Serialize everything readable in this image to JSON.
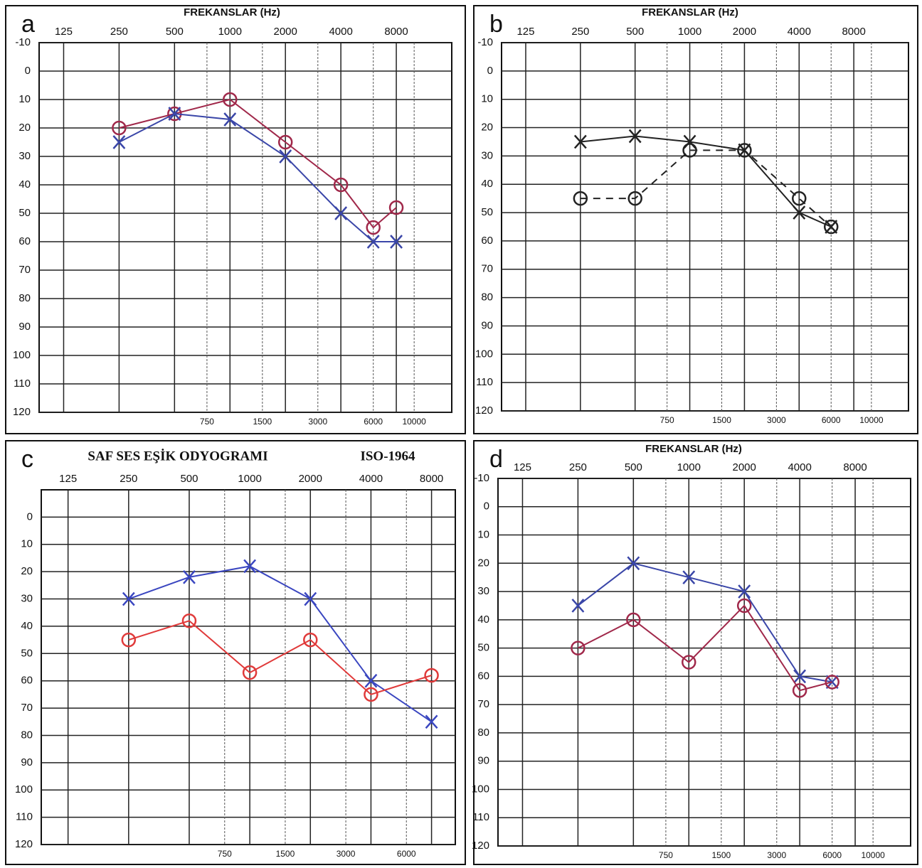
{
  "chart_data": [
    {
      "type": "line",
      "label": "a",
      "title": "FREKANSLAR (Hz)",
      "xscale": "log",
      "xlim": [
        92,
        16000
      ],
      "xticks": [
        125,
        250,
        500,
        1000,
        2000,
        4000,
        8000
      ],
      "x2ticks": [
        750,
        1500,
        3000,
        6000,
        10000
      ],
      "ylim": [
        -10,
        120
      ],
      "y_inverted": true,
      "yticks": [
        -10,
        0,
        10,
        20,
        30,
        40,
        50,
        60,
        70,
        80,
        90,
        100,
        110,
        120
      ],
      "grid": true,
      "x": [
        250,
        500,
        1000,
        2000,
        4000,
        6000,
        8000
      ],
      "series": [
        {
          "marker": "o",
          "color": "#a0284a",
          "values": [
            20,
            15,
            10,
            25,
            40,
            55,
            48
          ]
        },
        {
          "marker": "x",
          "color": "#3a46a8",
          "values": [
            25,
            15,
            17,
            30,
            50,
            60,
            60
          ]
        }
      ]
    },
    {
      "type": "line",
      "label": "b",
      "title": "FREKANSLAR (Hz)",
      "xscale": "log",
      "xlim": [
        92,
        16000
      ],
      "xticks": [
        125,
        250,
        500,
        1000,
        2000,
        4000,
        8000
      ],
      "x2ticks": [
        750,
        1500,
        3000,
        6000,
        10000
      ],
      "ylim": [
        -10,
        120
      ],
      "y_inverted": true,
      "yticks": [
        -10,
        0,
        10,
        20,
        30,
        40,
        50,
        60,
        70,
        80,
        90,
        100,
        110,
        120
      ],
      "grid": true,
      "x": [
        250,
        500,
        1000,
        2000,
        4000,
        6000
      ],
      "series": [
        {
          "marker": "o",
          "color": "#222222",
          "dashed": true,
          "values": [
            45,
            45,
            28,
            28,
            45,
            55
          ]
        },
        {
          "marker": "x",
          "color": "#222222",
          "values": [
            25,
            23,
            25,
            28,
            50,
            55
          ]
        }
      ]
    },
    {
      "type": "line",
      "label": "c",
      "title": "SAF SES EŞİK ODYOGRAMI",
      "subtitle": "ISO-1964",
      "xscale": "log",
      "xlim": [
        92,
        10500
      ],
      "xticks": [
        125,
        250,
        500,
        1000,
        2000,
        4000,
        8000
      ],
      "x2ticks": [
        750,
        1500,
        3000,
        6000
      ],
      "ylim": [
        -10,
        120
      ],
      "y_inverted": true,
      "yticks": [
        0,
        10,
        20,
        30,
        40,
        50,
        60,
        70,
        80,
        90,
        100,
        110,
        120
      ],
      "grid": true,
      "x": [
        250,
        500,
        1000,
        2000,
        4000,
        8000
      ],
      "series": [
        {
          "marker": "x",
          "color": "#3a46c0",
          "values": [
            30,
            22,
            18,
            30,
            60,
            75
          ]
        },
        {
          "marker": "o",
          "color": "#e03a3a",
          "values": [
            45,
            38,
            57,
            45,
            65,
            58
          ]
        }
      ]
    },
    {
      "type": "line",
      "label": "d",
      "title": "FREKANSLAR (Hz)",
      "xscale": "log",
      "xlim": [
        92,
        16000
      ],
      "xticks": [
        125,
        250,
        500,
        1000,
        2000,
        4000,
        8000
      ],
      "x2ticks": [
        750,
        1500,
        3000,
        6000,
        10000
      ],
      "ylim": [
        -10,
        120
      ],
      "y_inverted": true,
      "yticks": [
        -10,
        0,
        10,
        20,
        30,
        40,
        50,
        60,
        70,
        80,
        90,
        100,
        110,
        120
      ],
      "grid": true,
      "x": [
        250,
        500,
        1000,
        2000,
        4000,
        6000
      ],
      "series": [
        {
          "marker": "x",
          "color": "#3a46a8",
          "values": [
            35,
            20,
            25,
            30,
            60,
            62
          ]
        },
        {
          "marker": "o",
          "color": "#a0284a",
          "values": [
            50,
            40,
            55,
            35,
            65,
            62
          ]
        }
      ]
    }
  ]
}
